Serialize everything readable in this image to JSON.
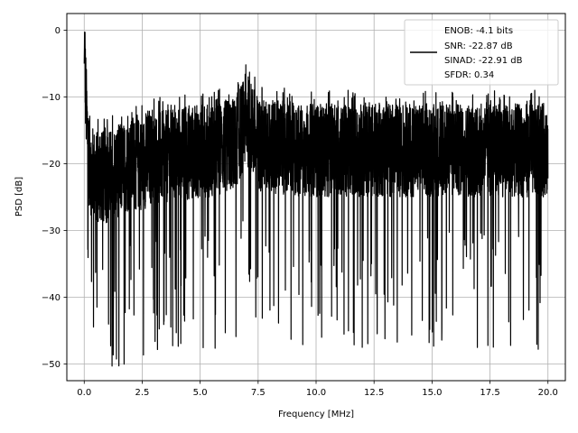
{
  "chart_data": {
    "type": "line",
    "title": "",
    "xlabel": "Frequency [MHz]",
    "ylabel": "PSD [dB]",
    "xlim": [
      -0.75,
      20.75
    ],
    "ylim": [
      -52.5,
      2.5
    ],
    "xticks": [
      0.0,
      2.5,
      5.0,
      7.5,
      10.0,
      12.5,
      15.0,
      17.5,
      20.0
    ],
    "xtick_labels": [
      "0.0",
      "2.5",
      "5.0",
      "7.5",
      "10.0",
      "12.5",
      "15.0",
      "17.5",
      "20.0"
    ],
    "yticks": [
      0,
      -10,
      -20,
      -30,
      -40,
      -50
    ],
    "ytick_labels": [
      "0",
      "−10",
      "−20",
      "−30",
      "−40",
      "−50"
    ],
    "grid": true,
    "legend_placement": "top-right",
    "legend_entries": [
      "ENOB: -4.1 bits",
      "SNR: -22.87 dB",
      "SINAD: -22.91 dB",
      "SFDR: 0.34"
    ],
    "line_color": "#000000",
    "series": [
      {
        "x": [
          0.0,
          0.02,
          0.05,
          0.1,
          0.2,
          0.3,
          0.5,
          1.0,
          1.5,
          2.0,
          2.5,
          3.0,
          3.5,
          4.0,
          4.5,
          5.0,
          5.5,
          6.0,
          6.5,
          6.9,
          7.0,
          7.1,
          7.5,
          8.0,
          8.5,
          9.0,
          9.5,
          10.0,
          10.5,
          11.0,
          11.5,
          12.0,
          12.5,
          13.0,
          13.5,
          14.0,
          14.5,
          15.0,
          15.5,
          16.0,
          16.5,
          17.0,
          17.5,
          18.0,
          18.5,
          19.0,
          19.5,
          20.0
        ],
        "y": [
          -5,
          -0.3,
          -8,
          -13,
          -19,
          -21,
          -22,
          -22,
          -21,
          -20,
          -20,
          -19,
          -19,
          -18.5,
          -18.5,
          -18,
          -18,
          -17.5,
          -17,
          -14,
          -13,
          -14,
          -17,
          -17.5,
          -17.5,
          -18,
          -18,
          -18,
          -18,
          -18,
          -18,
          -18,
          -18,
          -18,
          -18,
          -18,
          -18,
          -18,
          -18,
          -18,
          -18,
          -18,
          -18,
          -18,
          -18,
          -18,
          -18,
          -18
        ]
      }
    ]
  }
}
